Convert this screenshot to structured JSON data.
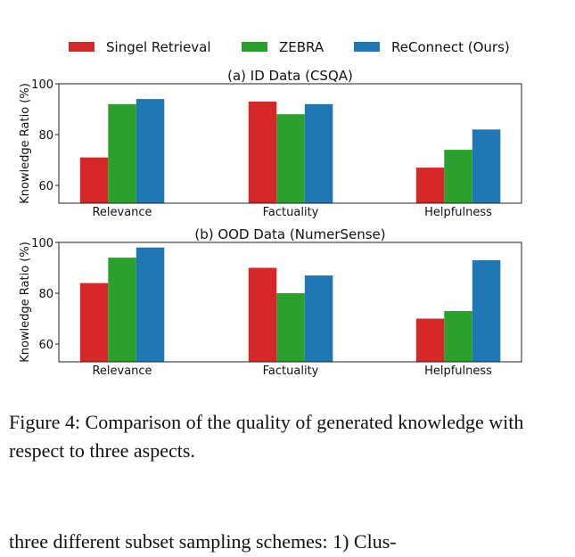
{
  "colors": {
    "single": "#d62728",
    "zebra": "#2ca02c",
    "reconnect": "#1f77b4"
  },
  "legend": [
    "Singel Retrieval",
    "ZEBRA",
    "ReConnect (Ours)"
  ],
  "chart_data": [
    {
      "type": "bar",
      "title": "(a) ID Data (CSQA)",
      "ylabel": "Knowledge Ratio (%)",
      "categories": [
        "Relevance",
        "Factuality",
        "Helpfulness"
      ],
      "ylim": [
        53,
        100
      ],
      "yticks": [
        60,
        80,
        100
      ],
      "series": [
        {
          "name": "Singel Retrieval",
          "values": [
            71,
            93,
            67
          ]
        },
        {
          "name": "ZEBRA",
          "values": [
            92,
            88,
            74
          ]
        },
        {
          "name": "ReConnect (Ours)",
          "values": [
            94,
            92,
            82
          ]
        }
      ]
    },
    {
      "type": "bar",
      "title": "(b) OOD Data (NumerSense)",
      "ylabel": "Knowledge Ratio (%)",
      "categories": [
        "Relevance",
        "Factuality",
        "Helpfulness"
      ],
      "ylim": [
        53,
        100
      ],
      "yticks": [
        60,
        80,
        100
      ],
      "series": [
        {
          "name": "Singel Retrieval",
          "values": [
            84,
            90,
            70
          ]
        },
        {
          "name": "ZEBRA",
          "values": [
            94,
            80,
            73
          ]
        },
        {
          "name": "ReConnect (Ours)",
          "values": [
            98,
            87,
            93
          ]
        }
      ]
    }
  ],
  "caption": "Figure 4: Comparison of the quality of generated knowledge with respect to three aspects.",
  "body_text": "three different subset sampling schemes: 1) Clus-"
}
